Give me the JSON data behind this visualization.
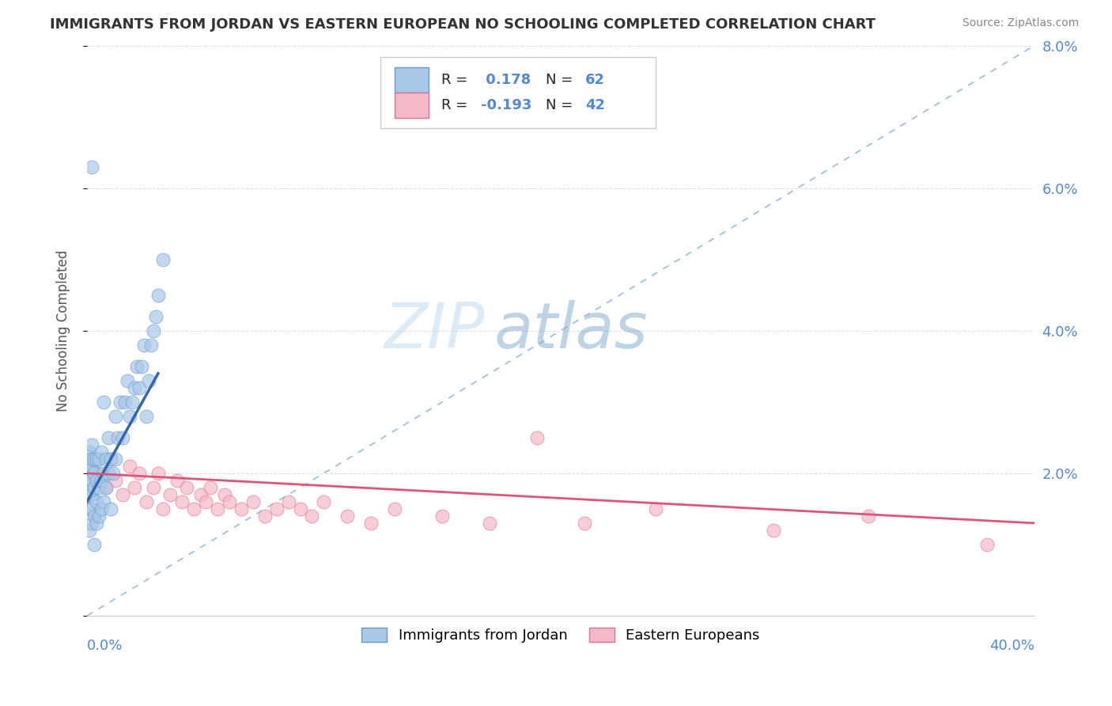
{
  "title": "IMMIGRANTS FROM JORDAN VS EASTERN EUROPEAN NO SCHOOLING COMPLETED CORRELATION CHART",
  "source": "Source: ZipAtlas.com",
  "ylabel": "No Schooling Completed",
  "xlim": [
    0.0,
    0.4
  ],
  "ylim": [
    0.0,
    0.08
  ],
  "yticks": [
    0.0,
    0.02,
    0.04,
    0.06,
    0.08
  ],
  "ytick_labels": [
    "",
    "2.0%",
    "4.0%",
    "6.0%",
    "8.0%"
  ],
  "legend_blue_label": "Immigrants from Jordan",
  "legend_pink_label": "Eastern Europeans",
  "R_blue": 0.178,
  "N_blue": 62,
  "R_pink": -0.193,
  "N_pink": 42,
  "blue_color": "#a8c8e8",
  "pink_color": "#f5b8c8",
  "blue_edge_color": "#6699cc",
  "pink_edge_color": "#e07090",
  "blue_line_color": "#3366aa",
  "pink_line_color": "#dd5577",
  "ref_line_color": "#99bbdd",
  "watermark_zip_color": "#c8dff0",
  "watermark_atlas_color": "#88aacc",
  "background_color": "#ffffff",
  "grid_color": "#dddddd",
  "tick_label_color": "#5588cc",
  "jordan_x": [
    0.001,
    0.001,
    0.001,
    0.001,
    0.001,
    0.001,
    0.001,
    0.001,
    0.002,
    0.002,
    0.002,
    0.002,
    0.002,
    0.002,
    0.002,
    0.003,
    0.003,
    0.003,
    0.003,
    0.003,
    0.004,
    0.004,
    0.004,
    0.004,
    0.005,
    0.005,
    0.005,
    0.006,
    0.006,
    0.006,
    0.007,
    0.007,
    0.007,
    0.008,
    0.008,
    0.009,
    0.009,
    0.01,
    0.01,
    0.011,
    0.012,
    0.012,
    0.013,
    0.014,
    0.015,
    0.016,
    0.017,
    0.018,
    0.019,
    0.02,
    0.021,
    0.022,
    0.023,
    0.024,
    0.025,
    0.026,
    0.027,
    0.028,
    0.029,
    0.03,
    0.032,
    0.002
  ],
  "jordan_y": [
    0.012,
    0.015,
    0.017,
    0.019,
    0.02,
    0.021,
    0.022,
    0.023,
    0.013,
    0.015,
    0.017,
    0.019,
    0.021,
    0.022,
    0.024,
    0.01,
    0.014,
    0.018,
    0.02,
    0.022,
    0.013,
    0.016,
    0.019,
    0.022,
    0.014,
    0.018,
    0.022,
    0.015,
    0.019,
    0.023,
    0.016,
    0.02,
    0.03,
    0.018,
    0.022,
    0.02,
    0.025,
    0.015,
    0.022,
    0.02,
    0.022,
    0.028,
    0.025,
    0.03,
    0.025,
    0.03,
    0.033,
    0.028,
    0.03,
    0.032,
    0.035,
    0.032,
    0.035,
    0.038,
    0.028,
    0.033,
    0.038,
    0.04,
    0.042,
    0.045,
    0.05,
    0.063
  ],
  "eastern_x": [
    0.005,
    0.008,
    0.01,
    0.012,
    0.015,
    0.018,
    0.02,
    0.022,
    0.025,
    0.028,
    0.03,
    0.032,
    0.035,
    0.038,
    0.04,
    0.042,
    0.045,
    0.048,
    0.05,
    0.052,
    0.055,
    0.058,
    0.06,
    0.065,
    0.07,
    0.075,
    0.08,
    0.085,
    0.09,
    0.095,
    0.1,
    0.11,
    0.12,
    0.13,
    0.15,
    0.17,
    0.19,
    0.21,
    0.24,
    0.29,
    0.33,
    0.38
  ],
  "eastern_y": [
    0.02,
    0.018,
    0.022,
    0.019,
    0.017,
    0.021,
    0.018,
    0.02,
    0.016,
    0.018,
    0.02,
    0.015,
    0.017,
    0.019,
    0.016,
    0.018,
    0.015,
    0.017,
    0.016,
    0.018,
    0.015,
    0.017,
    0.016,
    0.015,
    0.016,
    0.014,
    0.015,
    0.016,
    0.015,
    0.014,
    0.016,
    0.014,
    0.013,
    0.015,
    0.014,
    0.013,
    0.025,
    0.013,
    0.015,
    0.012,
    0.014,
    0.01
  ],
  "blue_trend_x": [
    0.0,
    0.03
  ],
  "blue_trend_y": [
    0.016,
    0.034
  ],
  "pink_trend_x": [
    0.0,
    0.4
  ],
  "pink_trend_y": [
    0.02,
    0.013
  ]
}
